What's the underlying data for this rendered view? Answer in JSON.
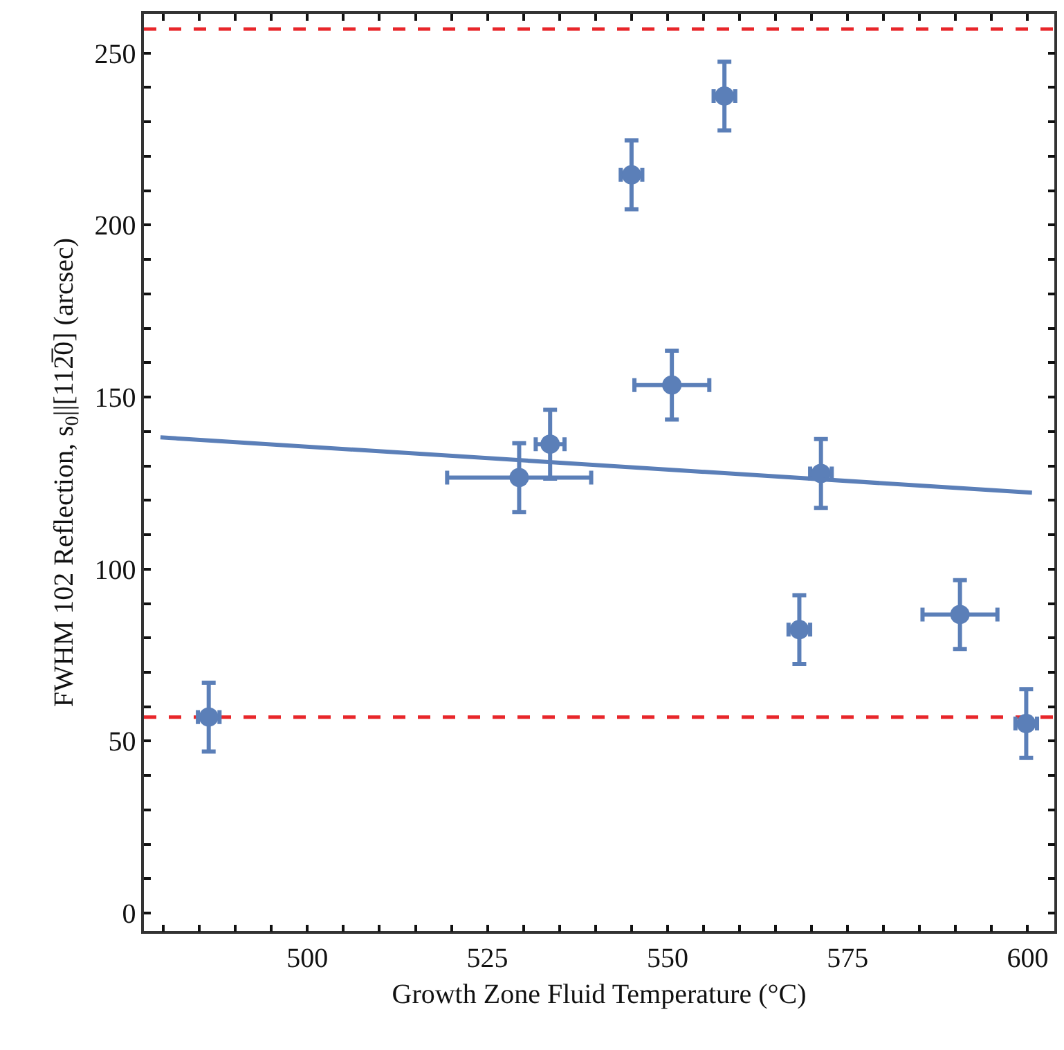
{
  "chart_data": {
    "type": "scatter",
    "xlabel": "Growth Zone Fluid Temperature (°C)",
    "ylabel": "FWHM 102 Reflection, s$_{0}$||[112̅0] (arcsec)",
    "xlim": [
      477.3,
      603.7
    ],
    "ylim": [
      -5.2,
      261.4
    ],
    "xticks": [
      {
        "value": 480,
        "label": null
      },
      {
        "value": 485,
        "label": null
      },
      {
        "value": 490,
        "label": null
      },
      {
        "value": 495,
        "label": null
      },
      500,
      {
        "value": 505,
        "label": null
      },
      {
        "value": 510,
        "label": null
      },
      {
        "value": 515,
        "label": null
      },
      {
        "value": 520,
        "label": null
      },
      525,
      {
        "value": 530,
        "label": null
      },
      {
        "value": 535,
        "label": null
      },
      {
        "value": 540,
        "label": null
      },
      {
        "value": 545,
        "label": null
      },
      550,
      {
        "value": 555,
        "label": null
      },
      {
        "value": 560,
        "label": null
      },
      {
        "value": 565,
        "label": null
      },
      {
        "value": 570,
        "label": null
      },
      575,
      {
        "value": 580,
        "label": null
      },
      {
        "value": 585,
        "label": null
      },
      {
        "value": 590,
        "label": null
      },
      {
        "value": 595,
        "label": null
      },
      600
    ],
    "yticks": [
      0,
      {
        "value": 10,
        "label": null
      },
      {
        "value": 20,
        "label": null
      },
      {
        "value": 30,
        "label": null
      },
      {
        "value": 40,
        "label": null
      },
      50,
      {
        "value": 60,
        "label": null
      },
      {
        "value": 70,
        "label": null
      },
      {
        "value": 80,
        "label": null
      },
      {
        "value": 90,
        "label": null
      },
      100,
      {
        "value": 110,
        "label": null
      },
      {
        "value": 120,
        "label": null
      },
      {
        "value": 130,
        "label": null
      },
      {
        "value": 140,
        "label": null
      },
      150,
      {
        "value": 160,
        "label": null
      },
      {
        "value": 170,
        "label": null
      },
      {
        "value": 180,
        "label": null
      },
      {
        "value": 190,
        "label": null
      },
      200,
      {
        "value": 210,
        "label": null
      },
      {
        "value": 220,
        "label": null
      },
      {
        "value": 230,
        "label": null
      },
      {
        "value": 240,
        "label": null
      },
      250
    ],
    "grid": false,
    "marker": "circle",
    "series": [
      {
        "color": "#5b7fb8",
        "x": [
          486.3,
          529.4,
          533.7,
          545,
          557.9,
          550.6,
          571.3,
          568.3,
          590.6,
          599.8
        ],
        "values": [
          57,
          126.6,
          136.3,
          214.6,
          237.5,
          153.5,
          127.8,
          82.4,
          86.8,
          55.1
        ],
        "errors": [
          10,
          10,
          10,
          10,
          10,
          10,
          10,
          10,
          10,
          10
        ],
        "xerrors": [
          1.5,
          10,
          2,
          1.5,
          1.5,
          5.2,
          1.5,
          1.5,
          5.2,
          1.5
        ]
      },
      {
        "type": "line",
        "color": "#5b7fb8",
        "x": [
          479.6,
          600.6
        ],
        "values": [
          138.3,
          122.2
        ],
        "marker": "none"
      }
    ],
    "ref_lines": [
      {
        "axis": "y",
        "value": 257,
        "color": "#e8262a",
        "line_style": "dashed"
      },
      {
        "axis": "y",
        "value": 57,
        "color": "#e8262a",
        "line_style": "dashed"
      }
    ]
  }
}
